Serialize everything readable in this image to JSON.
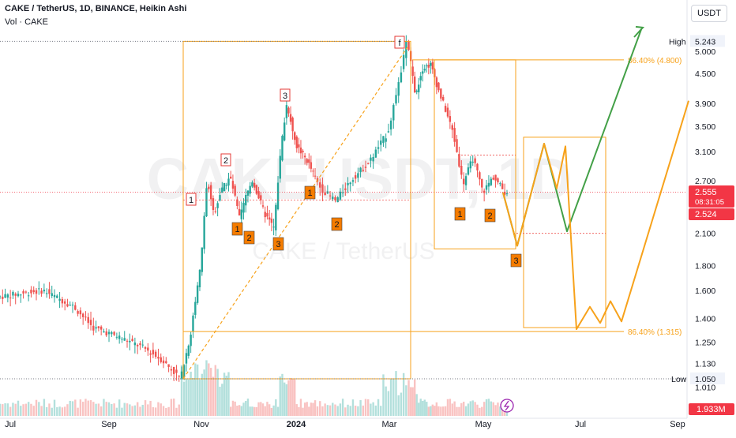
{
  "header": {
    "title": "CAKE / TetherUS, 1D, BINANCE, Heikin Ashi",
    "volume_label": "Vol · CAKE"
  },
  "currency_button": "USDT",
  "watermark": {
    "symbol": "CAKEUSDT, 1D",
    "name": "CAKE / TetherUS"
  },
  "colors": {
    "up": "#26a69a",
    "down": "#ef5350",
    "fib": "#f7a21b",
    "projection_green": "#43a047",
    "label_border": "#e53935",
    "wave_badge": "#f57c00",
    "last_price_bg": "#f23645",
    "prev_close_bg": "#f23645",
    "volume_badge_bg": "#f23645"
  },
  "chart_data": {
    "type": "candlestick",
    "style": "Heikin Ashi",
    "x_ticks": [
      "Jul",
      "Sep",
      "Nov",
      "2024",
      "Mar",
      "May",
      "Jul",
      "Sep"
    ],
    "y_ticks": [
      "5.000",
      "4.500",
      "3.900",
      "3.500",
      "3.100",
      "2.700",
      "2.100",
      "1.800",
      "1.600",
      "1.400",
      "1.250",
      "1.130",
      "1.010"
    ],
    "y_scale": "log",
    "high": {
      "label": "High",
      "value": "5.243"
    },
    "low": {
      "label": "Low",
      "value": "1.050"
    },
    "last_price": {
      "value": "2.555",
      "countdown": "08:31:05"
    },
    "prev_close": "2.524",
    "volume_last": "1.933M",
    "fib_levels": [
      {
        "label": "86.40% (4.800)",
        "value": 4.8
      },
      {
        "label": "86.40% (1.315)",
        "value": 1.315
      }
    ],
    "wave_labels": [
      "1",
      "2",
      "3",
      "f"
    ],
    "wave_badges": [
      "1",
      "2",
      "3",
      "1",
      "2",
      "1",
      "2",
      "3"
    ]
  }
}
